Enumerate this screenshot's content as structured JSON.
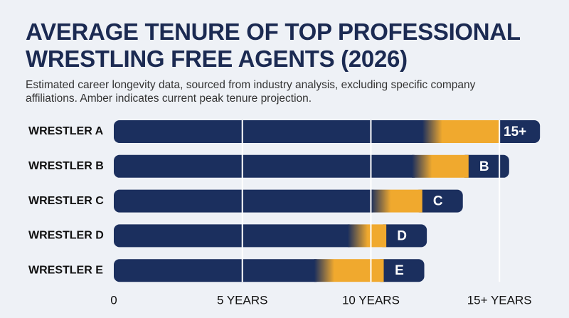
{
  "chart_data": {
    "type": "stacked_bar_horizontal",
    "title": "AVERAGE TENURE OF TOP PROFESSIONAL WRESTLING FREE AGENTS (2026)",
    "subtitle": "Estimated career longevity data, sourced from industry analysis, excluding specific company affiliations. Amber indicates current peak tenure projection.",
    "categories": [
      "WRESTLER A",
      "WRESTLER B",
      "WRESTLER C",
      "WRESTLER D",
      "WRESTLER E"
    ],
    "series": [
      {
        "color": "#1b2f5e",
        "values": [
          12.0,
          11.6,
          10.0,
          9.1,
          7.8
        ]
      },
      {
        "color": "#f0a92e",
        "values": [
          3.0,
          2.2,
          2.0,
          1.5,
          2.7
        ],
        "value_labels": [
          "15+",
          "B",
          "C",
          "D",
          "E"
        ]
      }
    ],
    "xlim": [
      0,
      16.6
    ],
    "xticks": [
      0,
      {
        "value": 5,
        "label": "5 YEARS"
      },
      {
        "value": 10,
        "label": "10 YEARS"
      },
      {
        "value": 15,
        "label": "15+ YEARS"
      }
    ],
    "grid": true
  }
}
